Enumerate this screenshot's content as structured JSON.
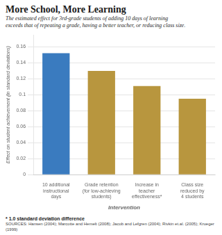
{
  "chart_data": {
    "type": "bar",
    "title": "More School, More Learning",
    "subtitle": [
      "The estimated effect for 3rd-grade students of adding 10 days of learning",
      "exceeds that of repeating a grade, having a better teacher, or reducing class size."
    ],
    "categories": [
      "10 additional\ninstructional\ndays",
      "Grade retention\n(for low-achieving\nstudents)",
      "Increase in\nteacher\neffectiveness*",
      "Class size\nreduced by\n4 students"
    ],
    "values": [
      0.152,
      0.13,
      0.111,
      0.095
    ],
    "colors": [
      "#3a7bbf",
      "#b8963e",
      "#b8963e",
      "#b8963e"
    ],
    "xlabel": "Intervention",
    "ylabel": "Effect on student achievement (in standard deviations)",
    "ylim": [
      0,
      0.175
    ],
    "yticks": [
      0,
      0.02,
      0.04,
      0.06,
      0.08,
      0.1,
      0.12,
      0.14,
      0.16
    ],
    "grid": true,
    "annotations": [
      "* 1.0 standard deviation difference",
      "SOURCES: Hansen (2004); Marcotte and Hemelt (2008); Jacob and Lefgren (2004); Rivkin et.al. (2005); Krueger (1999)"
    ]
  }
}
